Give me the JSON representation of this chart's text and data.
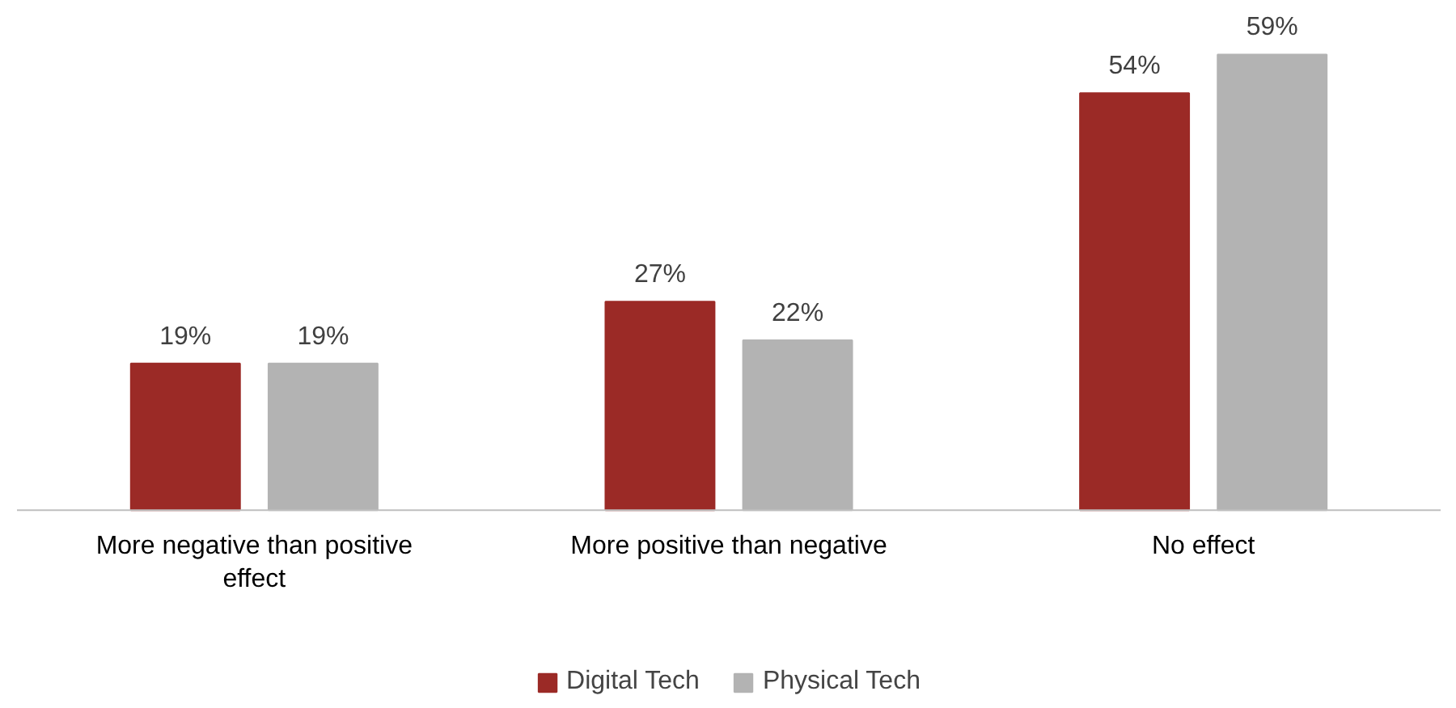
{
  "chart_data": {
    "type": "bar",
    "categories": [
      "More negative than positive effect",
      "More positive than negative",
      "No effect"
    ],
    "series": [
      {
        "name": "Digital Tech",
        "color": "#9b2a26",
        "values": [
          19,
          27,
          54
        ],
        "value_labels": [
          "19%",
          "27%",
          "54%"
        ]
      },
      {
        "name": "Physical Tech",
        "color": "#b3b3b3",
        "values": [
          19,
          22,
          59
        ],
        "value_labels": [
          "19%",
          "22%",
          "59%"
        ]
      }
    ],
    "legend": "bottom",
    "grid": false
  }
}
